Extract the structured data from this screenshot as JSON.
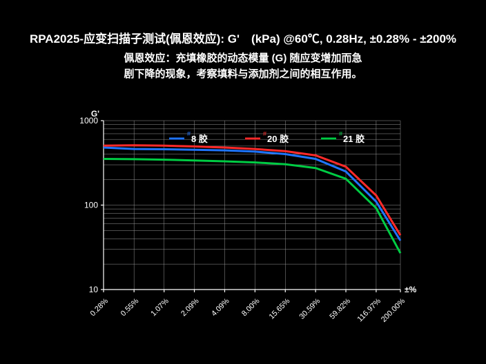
{
  "title": "RPA2025-应变扫描子测试(佩恩效应): G'　(kPa) @60℃, 0.28Hz, ±0.28% - ±200%",
  "subtitle_line1": "佩恩效应：充填橡胶的动态模量 (G) 随应变增加而急",
  "subtitle_line2": "剧下降的现象，考察填料与添加剂之间的相互作用。",
  "chart": {
    "type": "line",
    "background_color": "#000000",
    "grid_color": "#999999",
    "axis_color": "#ffffff",
    "text_color": "#ffffff",
    "ylabel": "G'",
    "xlabel": "±%",
    "yscale": "log",
    "xscale": "log",
    "ylim": [
      10,
      1000
    ],
    "yticks": [
      10,
      100,
      1000
    ],
    "ytick_labels": [
      "10",
      "100",
      "1000"
    ],
    "x_values": [
      0.28,
      0.55,
      1.07,
      2.09,
      4.09,
      8.0,
      15.65,
      30.59,
      59.82,
      116.97,
      200.0
    ],
    "xtick_labels": [
      "0.28%",
      "0.55%",
      "1.07%",
      "2.09%",
      "4.09%",
      "8.00%",
      "15.65%",
      "30.59%",
      "59.82%",
      "116.97%",
      "200.00%"
    ],
    "series": [
      {
        "label": "8 胶",
        "sup": "#",
        "color": "#1f75ff",
        "values": [
          480,
          462,
          458,
          452,
          445,
          430,
          402,
          352,
          250,
          110,
          38
        ]
      },
      {
        "label": "20 胶",
        "sup": "#",
        "color": "#ff2a2a",
        "values": [
          505,
          510,
          505,
          495,
          480,
          462,
          435,
          388,
          285,
          130,
          44
        ]
      },
      {
        "label": "21 胶",
        "sup": "#",
        "color": "#00cc44",
        "values": [
          352,
          350,
          345,
          338,
          330,
          320,
          305,
          275,
          205,
          92,
          27
        ]
      }
    ],
    "title_fontsize": 17,
    "subtitle_fontsize": 15,
    "tick_fontsize": 12
  }
}
